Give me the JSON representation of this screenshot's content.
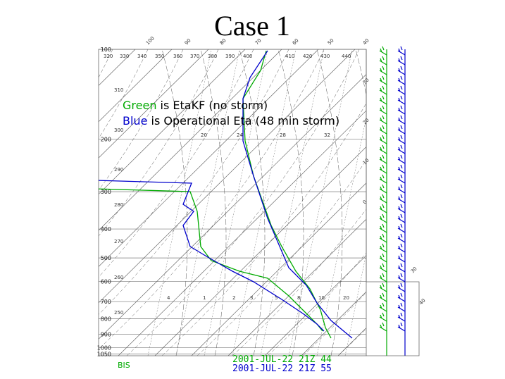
{
  "title": "Case 1",
  "legend": [
    {
      "key": "Green",
      "text": "is EtaKF (no storm)"
    },
    {
      "key": "Blue",
      "text": "is Operational Eta (48 min storm)"
    }
  ],
  "pressure_labels": [
    "100",
    "200",
    "300",
    "400",
    "500",
    "600",
    "700",
    "800",
    "900",
    "1000",
    "1050"
  ],
  "theta_labels_top": [
    "320",
    "330",
    "340",
    "350",
    "360",
    "370",
    "380",
    "390",
    "400",
    "410",
    "420",
    "430",
    "440"
  ],
  "theta_labels_left": [
    "310",
    "300",
    "290",
    "280",
    "270",
    "260",
    "250"
  ],
  "temp_labels_top": [
    "100",
    "90",
    "80",
    "70",
    "60",
    "50",
    "40"
  ],
  "temp_labels_right": [
    "30",
    "20",
    "10",
    "0"
  ],
  "temp_labels_lower_right": [
    "30",
    "40"
  ],
  "mixing_labels_upper": [
    "20",
    "24",
    "28",
    "32"
  ],
  "mixing_labels_lower": [
    "4",
    "1",
    "2",
    "3",
    "5",
    "8",
    "10",
    "20"
  ],
  "station": "BIS",
  "runs": [
    "2001-JUL-22 21Z 44",
    "2001-JUL-22 21Z 55"
  ]
}
